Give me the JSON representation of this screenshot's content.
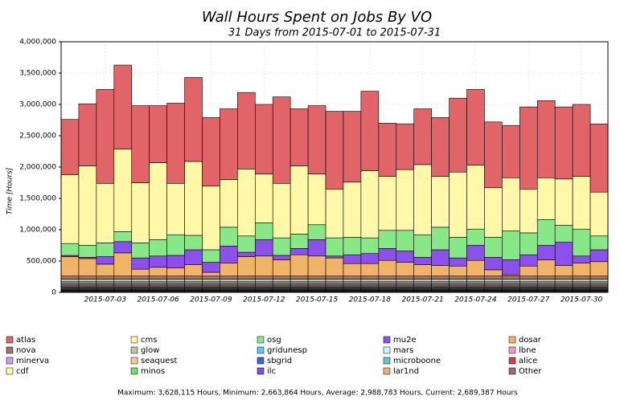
{
  "chart_data": {
    "type": "stacked-bar",
    "title": "Wall Hours Spent on Jobs By VO",
    "subtitle": "31 Days from 2015-07-01 to 2015-07-31",
    "y_label": "Time [Hours]",
    "footer": "Maximum: 3,628,115 Hours, Minimum: 2,663,864 Hours, Average: 2,988,783 Hours, Current: 2,689,387 Hours",
    "categories": [
      null,
      null,
      "2015-07-03",
      null,
      null,
      "2015-07-06",
      null,
      null,
      "2015-07-09",
      null,
      null,
      "2015-07-12",
      null,
      null,
      "2015-07-15",
      null,
      null,
      "2015-07-18",
      null,
      null,
      "2015-07-21",
      null,
      null,
      "2015-07-24",
      null,
      null,
      "2015-07-27",
      null,
      null,
      "2015-07-30",
      null
    ],
    "ylim": [
      0,
      4000000
    ],
    "yticks": [
      0,
      {
        "value": 500000,
        "label": "500,000"
      },
      {
        "value": 1000000,
        "label": "1,000,000"
      },
      {
        "value": 1500000,
        "label": "1,500,000"
      },
      {
        "value": 2000000,
        "label": "2,000,000"
      },
      {
        "value": 2500000,
        "label": "2,500,000"
      },
      {
        "value": 3000000,
        "label": "3,000,000"
      },
      {
        "value": 3500000,
        "label": "3,500,000"
      },
      {
        "value": 4000000,
        "label": "4,000,000"
      }
    ],
    "grid": true,
    "series": [
      {
        "name": "atlas",
        "color": "#e06468",
        "values": [
          880000,
          990000,
          1500000,
          1338000,
          1230000,
          910000,
          1280000,
          1340000,
          1090000,
          1130000,
          1220000,
          1110000,
          1380000,
          910000,
          1090000,
          1240000,
          1130000,
          1270000,
          850000,
          730000,
          890000,
          940000,
          1180000,
          1210000,
          1050000,
          834000,
          1310000,
          1230000,
          1150000,
          1150000,
          1089000
        ]
      },
      {
        "name": "cms",
        "color": "#fff8a8",
        "values": [
          1100000,
          1270000,
          950000,
          1320000,
          960000,
          1230000,
          820000,
          1180000,
          1020000,
          760000,
          1070000,
          780000,
          870000,
          1090000,
          810000,
          780000,
          880000,
          1070000,
          860000,
          970000,
          1120000,
          810000,
          1040000,
          1020000,
          790000,
          850000,
          700000,
          670000,
          740000,
          840000,
          700000
        ]
      },
      {
        "name": "osg",
        "color": "#88e888",
        "values": [
          190000,
          190000,
          220000,
          160000,
          240000,
          260000,
          330000,
          230000,
          200000,
          300000,
          260000,
          270000,
          280000,
          230000,
          240000,
          290000,
          280000,
          250000,
          290000,
          330000,
          360000,
          360000,
          330000,
          260000,
          320000,
          460000,
          350000,
          410000,
          270000,
          430000,
          220000
        ]
      },
      {
        "name": "mu2e",
        "color": "#8c50ec",
        "values": [
          20000,
          20000,
          120000,
          180000,
          180000,
          180000,
          200000,
          240000,
          160000,
          270000,
          70000,
          260000,
          70000,
          100000,
          260000,
          30000,
          140000,
          160000,
          190000,
          180000,
          120000,
          250000,
          130000,
          240000,
          200000,
          240000,
          180000,
          230000,
          370000,
          110000,
          190000
        ]
      },
      {
        "name": "dosar",
        "color": "#f0b468",
        "values": [
          310000,
          280000,
          190000,
          370000,
          110000,
          140000,
          130000,
          180000,
          60000,
          210000,
          310000,
          320000,
          260000,
          340000,
          320000,
          290000,
          200000,
          200000,
          250000,
          220000,
          180000,
          170000,
          160000,
          250000,
          100000,
          20000,
          160000,
          260000,
          170000,
          210000,
          230000
        ]
      },
      {
        "name": "nova",
        "color": "#a07474",
        "values": [
          50000,
          50000,
          50000,
          50000,
          50000,
          50000,
          50000,
          50000,
          50000,
          50000,
          50000,
          50000,
          50000,
          50000,
          50000,
          50000,
          50000,
          50000,
          50000,
          50000,
          50000,
          50000,
          50000,
          50000,
          50000,
          50000,
          50000,
          50000,
          50000,
          50000,
          50000
        ]
      },
      {
        "name": "glow",
        "color": "#b8c8a8",
        "values": [
          40000,
          40000,
          40000,
          40000,
          40000,
          40000,
          40000,
          40000,
          40000,
          40000,
          40000,
          40000,
          40000,
          40000,
          40000,
          40000,
          40000,
          40000,
          40000,
          40000,
          40000,
          40000,
          40000,
          40000,
          40000,
          40000,
          40000,
          40000,
          40000,
          40000,
          40000
        ]
      },
      {
        "name": "gridunesp",
        "color": "#60c8f0",
        "values": [
          20000,
          20000,
          20000,
          20000,
          20000,
          20000,
          20000,
          20000,
          20000,
          20000,
          20000,
          20000,
          20000,
          20000,
          20000,
          20000,
          20000,
          20000,
          20000,
          20000,
          20000,
          20000,
          20000,
          20000,
          20000,
          20000,
          20000,
          20000,
          20000,
          20000,
          20000
        ]
      },
      {
        "name": "mars",
        "color": "#c8f8f0",
        "values": [
          20000,
          20000,
          20000,
          20000,
          20000,
          20000,
          20000,
          20000,
          20000,
          20000,
          20000,
          20000,
          20000,
          20000,
          20000,
          20000,
          20000,
          20000,
          20000,
          20000,
          20000,
          20000,
          20000,
          20000,
          20000,
          20000,
          20000,
          20000,
          20000,
          20000,
          20000
        ]
      },
      {
        "name": "lbne",
        "color": "#f098c8",
        "values": [
          15000,
          15000,
          15000,
          15000,
          15000,
          15000,
          15000,
          15000,
          15000,
          15000,
          15000,
          15000,
          15000,
          15000,
          15000,
          15000,
          15000,
          15000,
          15000,
          15000,
          15000,
          15000,
          15000,
          15000,
          15000,
          15000,
          15000,
          15000,
          15000,
          15000,
          15000
        ]
      },
      {
        "name": "minerva",
        "color": "#c8a0f0",
        "values": [
          15000,
          15000,
          15000,
          15000,
          15000,
          15000,
          15000,
          15000,
          15000,
          15000,
          15000,
          15000,
          15000,
          15000,
          15000,
          15000,
          15000,
          15000,
          15000,
          15000,
          15000,
          15000,
          15000,
          15000,
          15000,
          15000,
          15000,
          15000,
          15000,
          15000,
          15000
        ]
      },
      {
        "name": "seaquest",
        "color": "#f8c898",
        "values": [
          15000,
          15000,
          15000,
          15000,
          15000,
          15000,
          15000,
          15000,
          15000,
          15000,
          15000,
          15000,
          15000,
          15000,
          15000,
          15000,
          15000,
          15000,
          15000,
          15000,
          15000,
          15000,
          15000,
          15000,
          15000,
          15000,
          15000,
          15000,
          15000,
          15000,
          15000
        ]
      },
      {
        "name": "sbgrid",
        "color": "#4060e0",
        "values": [
          10000,
          10000,
          10000,
          10000,
          10000,
          10000,
          10000,
          10000,
          10000,
          10000,
          10000,
          10000,
          10000,
          10000,
          10000,
          10000,
          10000,
          10000,
          10000,
          10000,
          10000,
          10000,
          10000,
          10000,
          10000,
          10000,
          10000,
          10000,
          10000,
          10000,
          10000
        ]
      },
      {
        "name": "microboone",
        "color": "#60c8c8",
        "values": [
          15000,
          15000,
          15000,
          15000,
          15000,
          15000,
          15000,
          15000,
          15000,
          15000,
          15000,
          15000,
          15000,
          15000,
          15000,
          15000,
          15000,
          15000,
          15000,
          15000,
          15000,
          15000,
          15000,
          15000,
          15000,
          15000,
          15000,
          15000,
          15000,
          15000,
          15000
        ]
      },
      {
        "name": "alice",
        "color": "#d04050",
        "values": [
          15000,
          15000,
          15000,
          15000,
          15000,
          15000,
          15000,
          15000,
          15000,
          15000,
          15000,
          15000,
          15000,
          15000,
          15000,
          15000,
          15000,
          15000,
          15000,
          15000,
          15000,
          15000,
          15000,
          15000,
          15000,
          15000,
          15000,
          15000,
          15000,
          15000,
          15000
        ]
      },
      {
        "name": "cdf",
        "color": "#ffffa0",
        "values": [
          10000,
          10000,
          10000,
          10000,
          10000,
          10000,
          10000,
          10000,
          10000,
          10000,
          10000,
          10000,
          10000,
          10000,
          10000,
          10000,
          10000,
          10000,
          10000,
          10000,
          10000,
          10000,
          10000,
          10000,
          10000,
          10000,
          10000,
          10000,
          10000,
          10000,
          10000
        ]
      },
      {
        "name": "minos",
        "color": "#70e070",
        "values": [
          10000,
          10000,
          10000,
          10000,
          10000,
          10000,
          10000,
          10000,
          10000,
          10000,
          10000,
          10000,
          10000,
          10000,
          10000,
          10000,
          10000,
          10000,
          10000,
          10000,
          10000,
          10000,
          10000,
          10000,
          10000,
          10000,
          10000,
          10000,
          10000,
          10000,
          10000
        ]
      },
      {
        "name": "ilc",
        "color": "#8050e0",
        "values": [
          10000,
          10000,
          10000,
          10000,
          10000,
          10000,
          10000,
          10000,
          10000,
          10000,
          10000,
          10000,
          10000,
          10000,
          10000,
          10000,
          10000,
          10000,
          10000,
          10000,
          10000,
          10000,
          10000,
          10000,
          10000,
          10000,
          10000,
          10000,
          10000,
          10000,
          10000
        ]
      },
      {
        "name": "lar1nd",
        "color": "#f0b070",
        "values": [
          10000,
          10000,
          10000,
          10000,
          10000,
          10000,
          10000,
          10000,
          10000,
          10000,
          10000,
          10000,
          10000,
          10000,
          10000,
          10000,
          10000,
          10000,
          10000,
          10000,
          10000,
          10000,
          10000,
          10000,
          10000,
          10000,
          10000,
          10000,
          10000,
          10000,
          10000
        ]
      },
      {
        "name": "Other",
        "color": "#907070",
        "values": [
          5000,
          5000,
          5000,
          5000,
          5000,
          5000,
          5000,
          5000,
          5000,
          5000,
          5000,
          5000,
          5000,
          5000,
          5000,
          5000,
          5000,
          5000,
          5000,
          5000,
          5000,
          5000,
          5000,
          5000,
          5000,
          5000,
          5000,
          5000,
          5000,
          5000,
          5000
        ]
      }
    ]
  }
}
